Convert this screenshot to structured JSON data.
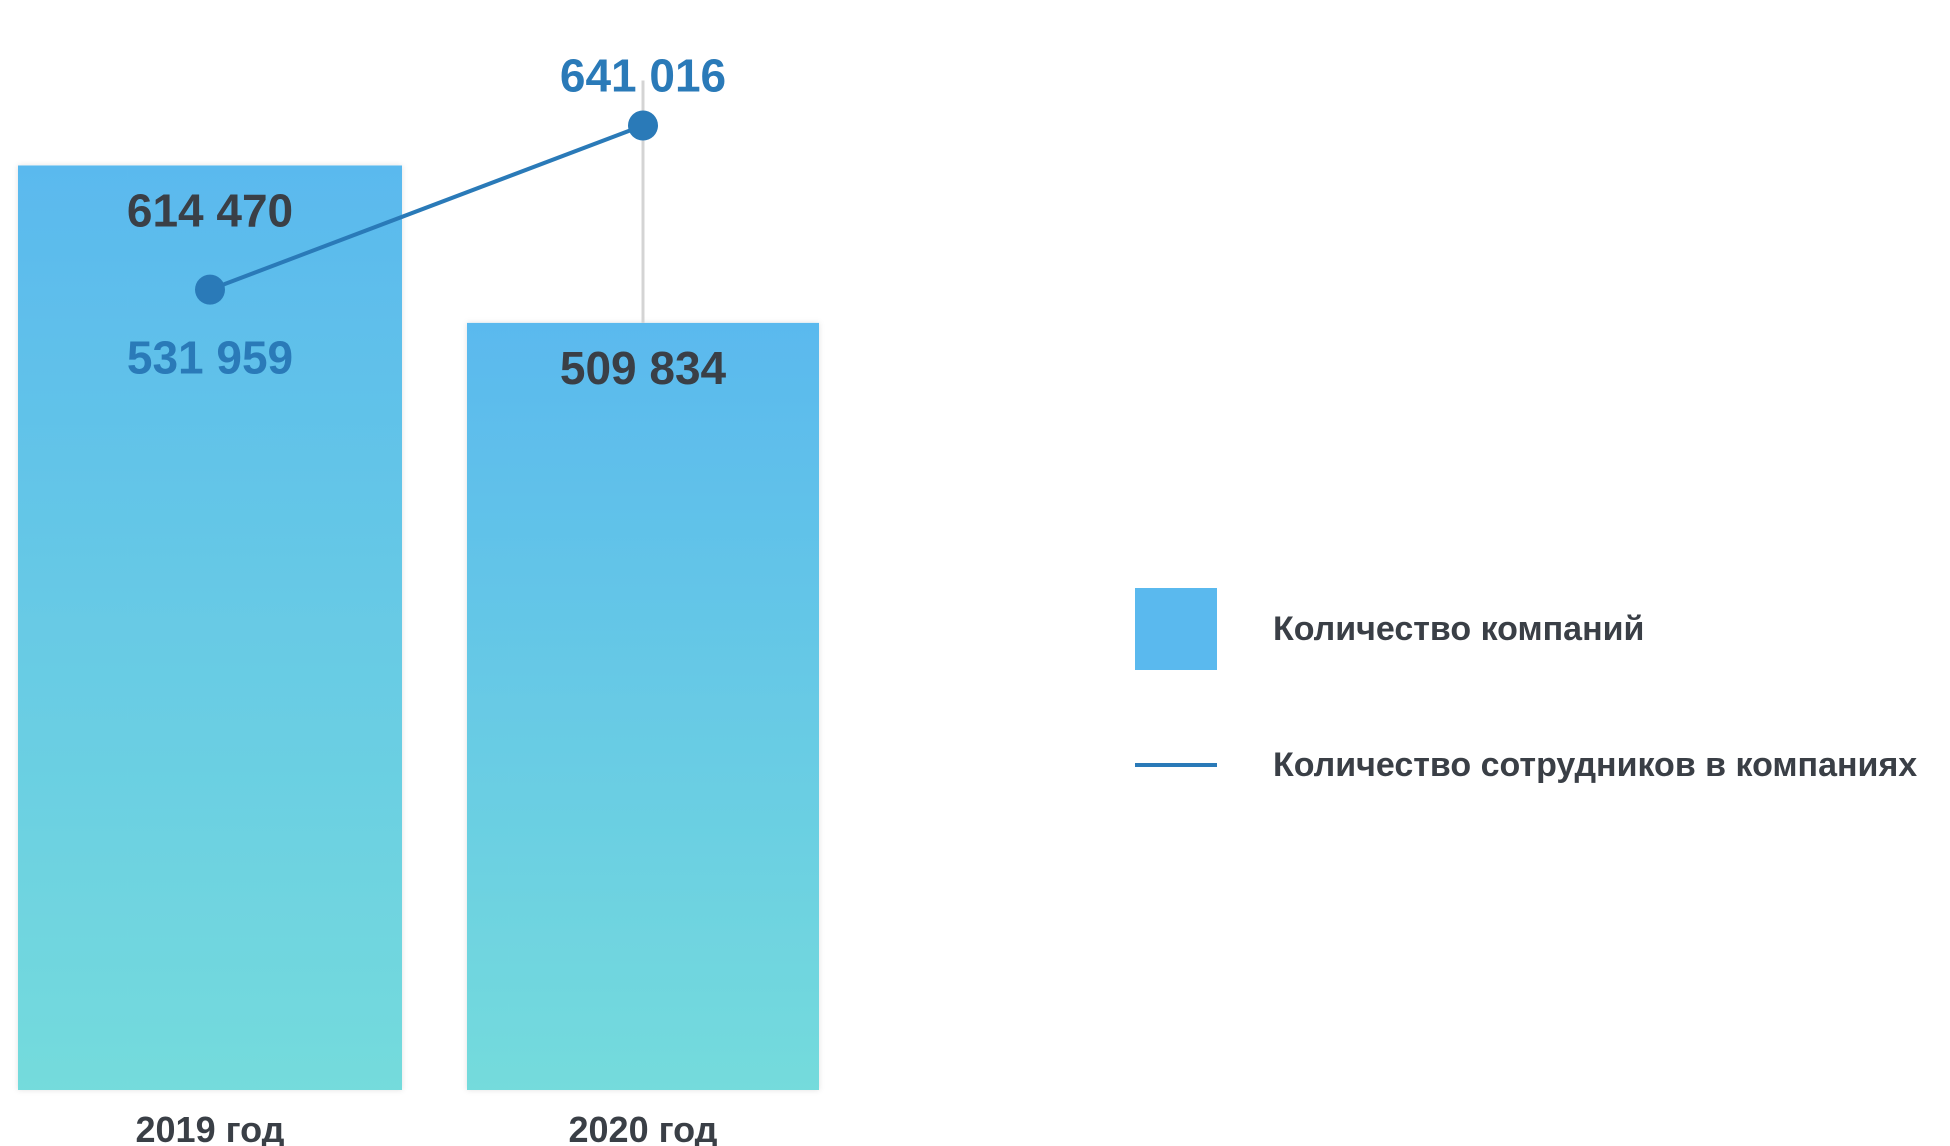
{
  "chart_data": {
    "type": "bar",
    "categories": [
      "2019 год",
      "2020 год"
    ],
    "series": [
      {
        "name": "Количество компаний",
        "type": "bar",
        "values": [
          614470,
          509834
        ],
        "value_labels": [
          "614 470",
          "509 834"
        ],
        "color": "#5ab9ee",
        "gradient_bottom_color": "#74dbdc"
      },
      {
        "name": "Количество сотрудников в компаниях",
        "type": "line",
        "values": [
          531959,
          641016
        ],
        "value_labels": [
          "531 959",
          "641 016"
        ],
        "color": "#2a7ab8"
      }
    ],
    "title": "",
    "xlabel": "",
    "ylabel": "",
    "legend_position": "right",
    "grid": false
  },
  "legend": {
    "items": [
      {
        "label": "Количество компаний",
        "swatch": "bar"
      },
      {
        "label": "Количество сотрудников в компаниях",
        "swatch": "line"
      }
    ]
  },
  "colors": {
    "bar_top": "#5ab9ee",
    "bar_bottom": "#74dbdc",
    "line": "#2a7ab8",
    "text_dark": "#3a3f46",
    "drop_line": "#d4d4d4"
  }
}
